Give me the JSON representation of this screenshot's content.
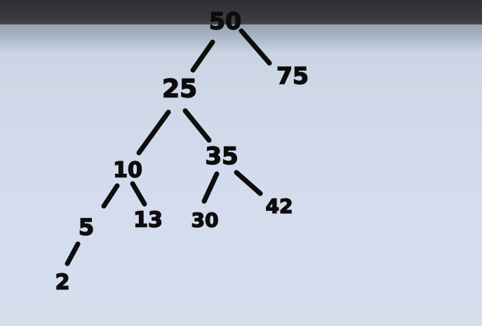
{
  "tree": {
    "nodes": [
      {
        "id": "n50",
        "label": "50"
      },
      {
        "id": "n75",
        "label": "75"
      },
      {
        "id": "n25",
        "label": "25"
      },
      {
        "id": "n10",
        "label": "10"
      },
      {
        "id": "n35",
        "label": "35"
      },
      {
        "id": "n5",
        "label": "5"
      },
      {
        "id": "n13",
        "label": "13"
      },
      {
        "id": "n30",
        "label": "30"
      },
      {
        "id": "n42",
        "label": "42"
      },
      {
        "id": "n2",
        "label": "2"
      }
    ],
    "edges": [
      {
        "from": "50",
        "to": "25"
      },
      {
        "from": "50",
        "to": "75"
      },
      {
        "from": "25",
        "to": "10"
      },
      {
        "from": "25",
        "to": "35"
      },
      {
        "from": "10",
        "to": "5"
      },
      {
        "from": "10",
        "to": "13"
      },
      {
        "from": "35",
        "to": "30"
      },
      {
        "from": "35",
        "to": "42"
      },
      {
        "from": "5",
        "to": "2"
      }
    ]
  }
}
